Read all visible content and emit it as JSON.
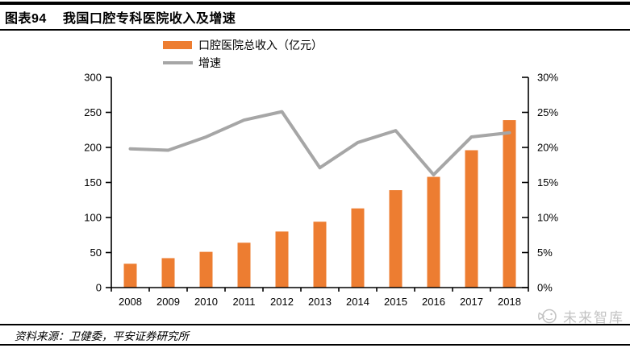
{
  "header": {
    "figure_label": "图表94",
    "title": "我国口腔专科医院收入及增速"
  },
  "chart_data": {
    "type": "combo_bar_line",
    "title": "我国口腔专科医院收入及增速",
    "categories": [
      "2008",
      "2009",
      "2010",
      "2011",
      "2012",
      "2013",
      "2014",
      "2015",
      "2016",
      "2017",
      "2018"
    ],
    "series": [
      {
        "name": "口腔医院总收入（亿元）",
        "type": "bar",
        "axis": "left",
        "color": "#ED7D31",
        "values": [
          34,
          42,
          51,
          64,
          80,
          94,
          113,
          139,
          158,
          196,
          239
        ]
      },
      {
        "name": "增速",
        "type": "line",
        "axis": "right",
        "color": "#A6A6A6",
        "values": [
          19.8,
          19.6,
          21.5,
          23.9,
          25.1,
          17.1,
          20.7,
          22.4,
          16.1,
          21.5,
          22.1
        ]
      }
    ],
    "left_axis": {
      "min": 0,
      "max": 300,
      "step": 50,
      "tick_labels": [
        "0",
        "50",
        "100",
        "150",
        "200",
        "250",
        "300"
      ]
    },
    "right_axis": {
      "min": 0,
      "max": 30,
      "step": 5,
      "tick_labels": [
        "0%",
        "5%",
        "10%",
        "15%",
        "20%",
        "25%",
        "30%"
      ]
    },
    "legend_position": "top-center",
    "grid": false
  },
  "footer": {
    "source": "资料来源：卫健委，平安证券研究所"
  },
  "watermark": {
    "text": "未来智库"
  },
  "colors": {
    "bar": "#ED7D31",
    "line": "#A6A6A6",
    "axis": "#000000",
    "text": "#000000",
    "watermark": "#C3C3C3"
  }
}
